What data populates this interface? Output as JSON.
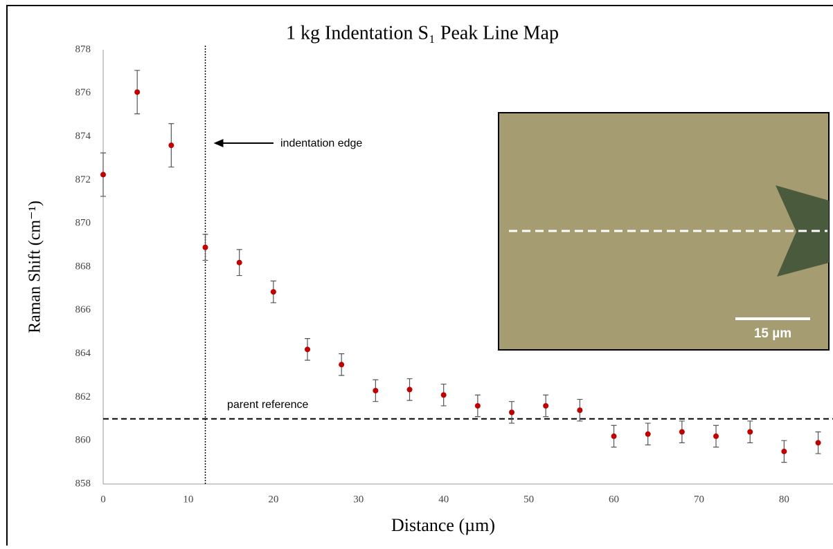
{
  "chart_data": {
    "type": "scatter",
    "title": "1 kg Indentation S₁ Peak Line Map",
    "x_label": "Distance (µm)",
    "y_label": "Raman Shift (cm⁻¹)",
    "xlim": [
      0,
      85.5
    ],
    "ylim": [
      858,
      878
    ],
    "xticks": [
      0,
      10,
      20,
      30,
      40,
      50,
      60,
      70,
      80
    ],
    "yticks": [
      858,
      860,
      862,
      864,
      866,
      868,
      870,
      872,
      874,
      876,
      878
    ],
    "series": [
      {
        "color": "#c00000",
        "x": [
          0,
          4,
          8,
          12,
          16,
          20,
          24,
          28,
          32,
          36,
          40,
          44,
          48,
          52,
          56,
          60,
          64,
          68,
          72,
          76,
          80,
          84
        ],
        "values": [
          872.25,
          876.05,
          873.6,
          868.9,
          868.2,
          866.85,
          864.2,
          863.5,
          862.3,
          862.35,
          862.1,
          861.6,
          861.3,
          861.6,
          861.4,
          860.2,
          860.3,
          860.4,
          860.2,
          860.4,
          859.5,
          859.9
        ],
        "errors": [
          1.0,
          1.0,
          1.0,
          0.6,
          0.6,
          0.5,
          0.5,
          0.5,
          0.5,
          0.5,
          0.5,
          0.5,
          0.5,
          0.5,
          0.5,
          0.5,
          0.5,
          0.5,
          0.5,
          0.5,
          0.5,
          0.5
        ]
      }
    ],
    "reference_line": {
      "value": 861,
      "label": "parent reference"
    },
    "edge_line": {
      "x": 12,
      "label": "indentation edge"
    },
    "inset_scale_label": "15 µm"
  }
}
